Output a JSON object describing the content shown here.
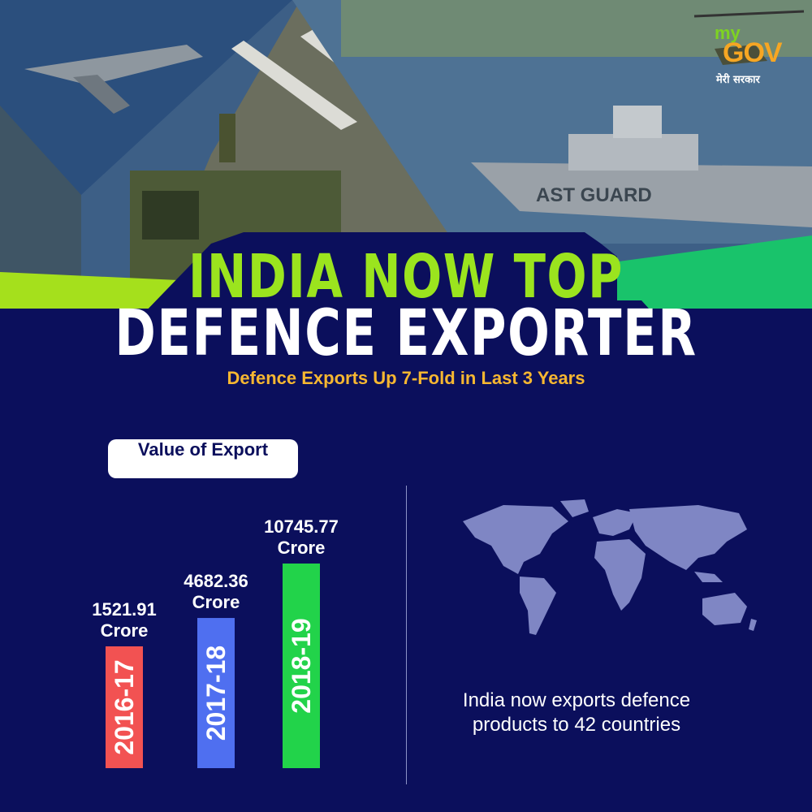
{
  "header": {
    "title_line1": "INDIA NOW TOP",
    "title_line2": "DEFENCE EXPORTER",
    "subtitle": "Defence Exports Up 7-Fold in Last 3 Years"
  },
  "logo": {
    "my": "my",
    "gov": "GOV",
    "tagline": "मेरी सरकार"
  },
  "colors": {
    "background": "#0b0f5c",
    "title_green": "#9be41e",
    "subtitle_amber": "#f7b731",
    "accent_green": "#19c36b"
  },
  "chart_data": {
    "type": "bar",
    "title": "Value of Export",
    "categories": [
      "2016-17",
      "2017-18",
      "2018-19"
    ],
    "values": [
      1521.91,
      4682.36,
      10745.77
    ],
    "value_labels": [
      "1521.91",
      "4682.36",
      "10745.77"
    ],
    "unit": "Crore",
    "bar_colors": [
      "#f25252",
      "#4f6ff0",
      "#22d34a"
    ]
  },
  "map": {
    "caption_line1": "India now exports defence",
    "caption_line2": "products to 42 countries"
  }
}
